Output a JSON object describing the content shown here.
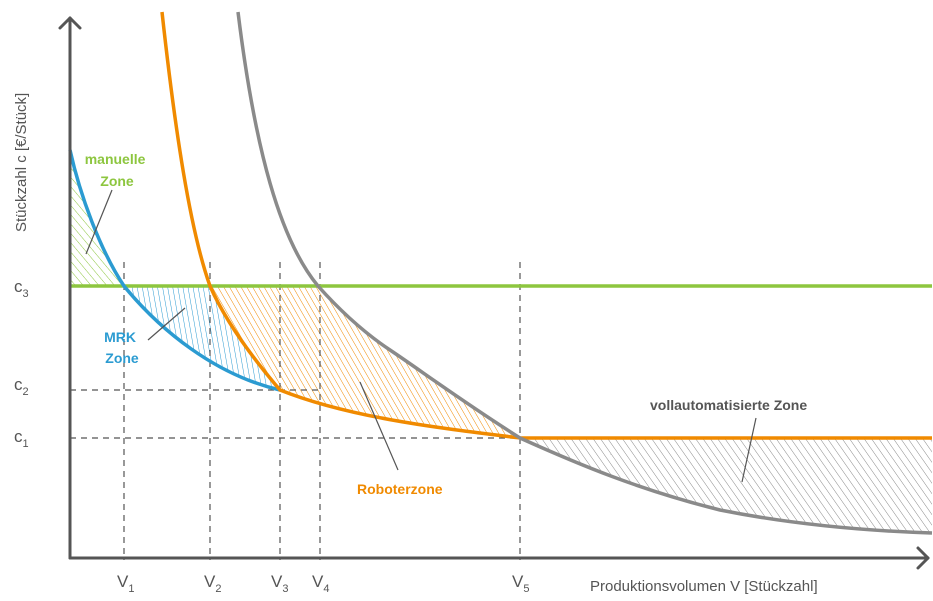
{
  "colors": {
    "manual": "#8dc63f",
    "mrk": "#2b9bd1",
    "robot": "#f08a00",
    "auto": "#8a8a8a",
    "axis": "#555555",
    "guide": "#555555"
  },
  "axes": {
    "y_title": "Stückzahl c [€/Stück]",
    "x_title": "Produktionsvolumen V [Stückzahl]"
  },
  "y_ticks": [
    {
      "base": "c",
      "sub": "3"
    },
    {
      "base": "c",
      "sub": "2"
    },
    {
      "base": "c",
      "sub": "1"
    }
  ],
  "x_ticks": [
    {
      "base": "V",
      "sub": "1"
    },
    {
      "base": "V",
      "sub": "2"
    },
    {
      "base": "V",
      "sub": "3"
    },
    {
      "base": "V",
      "sub": "4"
    },
    {
      "base": "V",
      "sub": "5"
    }
  ],
  "zones": {
    "manual_line1": "manuelle",
    "manual_line2": "Zone",
    "mrk_line1": "MRK",
    "mrk_line2": "Zone",
    "robot": "Roboterzone",
    "auto": "vollautomatisierte Zone"
  }
}
